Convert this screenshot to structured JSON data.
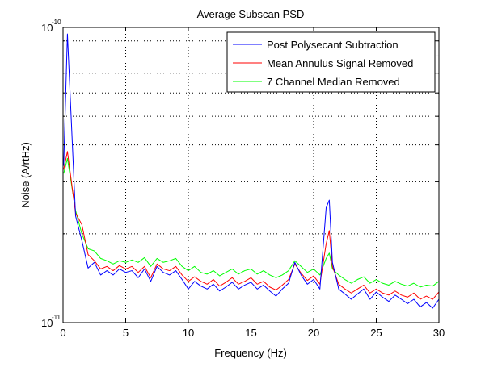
{
  "chart_data": {
    "type": "line",
    "title": "Average Subscan PSD",
    "xlabel": "Frequency (Hz)",
    "ylabel": "Noise (A/rtHz)",
    "xlim": [
      0,
      30
    ],
    "ylim": [
      1e-11,
      1e-10
    ],
    "yscale": "log",
    "grid": true,
    "legend_position": "top-right",
    "x_ticks": [
      "0",
      "5",
      "10",
      "15",
      "20",
      "25",
      "30"
    ],
    "y_ticks": [
      {
        "mantissa": "10",
        "exponent": "-10"
      },
      {
        "mantissa": "10",
        "exponent": "-11"
      }
    ],
    "x": [
      0.05,
      0.35,
      1.0,
      1.5,
      2.0,
      2.5,
      3.0,
      3.5,
      4.0,
      4.5,
      5.0,
      5.5,
      6.0,
      6.5,
      7.0,
      7.5,
      8.0,
      8.5,
      9.0,
      9.5,
      10.0,
      10.5,
      11.0,
      11.5,
      12.0,
      12.5,
      13.0,
      13.5,
      14.0,
      14.5,
      15.0,
      15.5,
      16.0,
      16.5,
      17.0,
      17.5,
      18.0,
      18.5,
      19.0,
      19.5,
      20.0,
      20.5,
      21.0,
      21.25,
      21.5,
      22.0,
      22.5,
      23.0,
      23.5,
      24.0,
      24.5,
      25.0,
      25.5,
      26.0,
      26.5,
      27.0,
      27.5,
      28.0,
      28.5,
      29.0,
      29.5,
      30.0
    ],
    "series": [
      {
        "name": "Post Polysecant Subtraction",
        "color": "#0000ff",
        "values": [
          3.4e-11,
          9.5e-11,
          2.3e-11,
          1.9e-11,
          1.53e-11,
          1.6e-11,
          1.45e-11,
          1.5e-11,
          1.45e-11,
          1.52e-11,
          1.48e-11,
          1.5e-11,
          1.42e-11,
          1.52e-11,
          1.38e-11,
          1.55e-11,
          1.48e-11,
          1.45e-11,
          1.5e-11,
          1.4e-11,
          1.3e-11,
          1.38e-11,
          1.33e-11,
          1.3e-11,
          1.35e-11,
          1.28e-11,
          1.32e-11,
          1.37e-11,
          1.3e-11,
          1.34e-11,
          1.37e-11,
          1.3e-11,
          1.34e-11,
          1.28e-11,
          1.23e-11,
          1.3e-11,
          1.36e-11,
          1.6e-11,
          1.45e-11,
          1.35e-11,
          1.4e-11,
          1.3e-11,
          2.45e-11,
          2.6e-11,
          1.6e-11,
          1.3e-11,
          1.25e-11,
          1.2e-11,
          1.25e-11,
          1.3e-11,
          1.2e-11,
          1.27e-11,
          1.22e-11,
          1.18e-11,
          1.24e-11,
          1.2e-11,
          1.16e-11,
          1.2e-11,
          1.13e-11,
          1.17e-11,
          1.12e-11,
          1.2e-11
        ]
      },
      {
        "name": "Mean Annulus Signal Removed",
        "color": "#ff0000",
        "values": [
          3.3e-11,
          3.8e-11,
          2.35e-11,
          2.15e-11,
          1.7e-11,
          1.62e-11,
          1.52e-11,
          1.55e-11,
          1.5e-11,
          1.56e-11,
          1.52e-11,
          1.55e-11,
          1.48e-11,
          1.55e-11,
          1.42e-11,
          1.58e-11,
          1.52e-11,
          1.5e-11,
          1.55e-11,
          1.45e-11,
          1.38e-11,
          1.43e-11,
          1.38e-11,
          1.35e-11,
          1.4e-11,
          1.33e-11,
          1.37e-11,
          1.42e-11,
          1.35e-11,
          1.38e-11,
          1.42e-11,
          1.35e-11,
          1.38e-11,
          1.32e-11,
          1.29e-11,
          1.34e-11,
          1.4e-11,
          1.58e-11,
          1.47e-11,
          1.39e-11,
          1.44e-11,
          1.35e-11,
          1.85e-11,
          2.05e-11,
          1.55e-11,
          1.35e-11,
          1.3e-11,
          1.26e-11,
          1.3e-11,
          1.34e-11,
          1.26e-11,
          1.3e-11,
          1.26e-11,
          1.24e-11,
          1.28e-11,
          1.24e-11,
          1.22e-11,
          1.26e-11,
          1.2e-11,
          1.23e-11,
          1.2e-11,
          1.27e-11
        ]
      },
      {
        "name": "7 Channel Median Removed",
        "color": "#00ff00",
        "values": [
          3.2e-11,
          3.6e-11,
          2.4e-11,
          2e-11,
          1.78e-11,
          1.75e-11,
          1.65e-11,
          1.62e-11,
          1.58e-11,
          1.62e-11,
          1.6e-11,
          1.63e-11,
          1.6e-11,
          1.66e-11,
          1.55e-11,
          1.65e-11,
          1.6e-11,
          1.62e-11,
          1.65e-11,
          1.55e-11,
          1.5e-11,
          1.55e-11,
          1.48e-11,
          1.46e-11,
          1.5e-11,
          1.44e-11,
          1.48e-11,
          1.52e-11,
          1.46e-11,
          1.5e-11,
          1.52e-11,
          1.46e-11,
          1.5e-11,
          1.45e-11,
          1.42e-11,
          1.45e-11,
          1.5e-11,
          1.62e-11,
          1.55e-11,
          1.48e-11,
          1.52e-11,
          1.45e-11,
          1.65e-11,
          1.72e-11,
          1.52e-11,
          1.45e-11,
          1.4e-11,
          1.36e-11,
          1.4e-11,
          1.43e-11,
          1.36e-11,
          1.4e-11,
          1.36e-11,
          1.34e-11,
          1.38e-11,
          1.35e-11,
          1.33e-11,
          1.36e-11,
          1.32e-11,
          1.34e-11,
          1.33e-11,
          1.38e-11
        ]
      }
    ]
  }
}
